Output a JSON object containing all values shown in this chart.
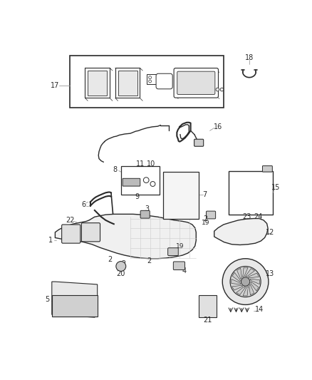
{
  "background_color": "#ffffff",
  "fig_width": 4.38,
  "fig_height": 5.33,
  "dpi": 100
}
